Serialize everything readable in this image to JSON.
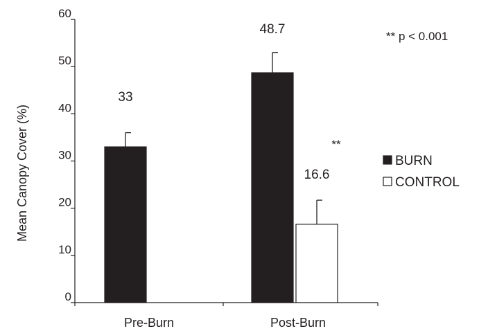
{
  "chart_data": {
    "type": "bar",
    "title": "",
    "xlabel": "",
    "ylabel": "Mean Canopy Cover (%)",
    "ylim": [
      0,
      60
    ],
    "yticks": [
      0,
      10,
      20,
      30,
      40,
      50,
      60
    ],
    "grid": false,
    "legend_placement": "right",
    "categories": [
      "Pre-Burn",
      "Post-Burn"
    ],
    "series": [
      {
        "name": "BURN",
        "color": "#231f20",
        "values": [
          33,
          48.7
        ],
        "errors": [
          3,
          4.3
        ],
        "labels": [
          "33",
          "48.7"
        ],
        "significance": [
          "",
          ""
        ]
      },
      {
        "name": "CONTROL",
        "color": "#ffffff",
        "values": [
          null,
          16.6
        ],
        "errors": [
          null,
          5.1
        ],
        "labels": [
          "",
          "16.6"
        ],
        "significance": [
          "",
          "**"
        ]
      }
    ],
    "annotations": [
      "** p < 0.001"
    ]
  }
}
